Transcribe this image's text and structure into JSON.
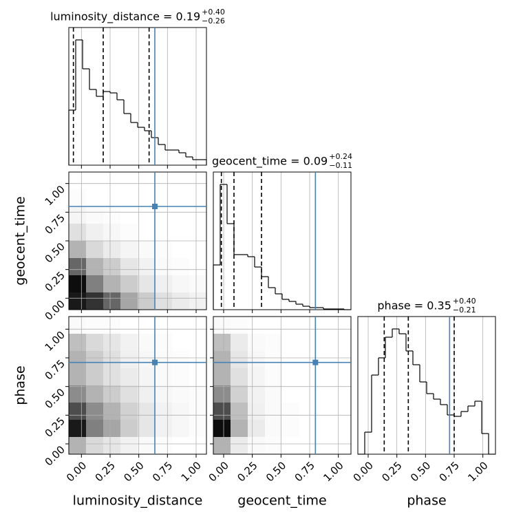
{
  "chart_data": [
    {
      "type": "histogram",
      "title": "luminosity_distance = 0.19",
      "title_sup": "+0.40",
      "title_sub": "−0.26",
      "bins": [
        -0.11,
        -0.05,
        0.01,
        0.07,
        0.13,
        0.19,
        0.25,
        0.31,
        0.37,
        0.43,
        0.49,
        0.55,
        0.61,
        0.67,
        0.73,
        0.79,
        0.85,
        0.91,
        0.97,
        1.03,
        1.09
      ],
      "counts": [
        80,
        182,
        140,
        110,
        100,
        107,
        105,
        95,
        75,
        62,
        55,
        50,
        40,
        30,
        22,
        22,
        18,
        12,
        8,
        8
      ],
      "quantiles": [
        -0.07,
        0.19,
        0.59
      ],
      "truth": 0.64,
      "truth_color": "#4682b4",
      "color": "#000000",
      "xlim": [
        -0.11,
        1.09
      ],
      "ylim": [
        0,
        200
      ],
      "xticks": [
        0,
        0.25,
        0.5,
        0.75,
        1
      ],
      "grid": true
    },
    {
      "type": "hist2d",
      "xlim": [
        -0.11,
        1.09
      ],
      "ylim": [
        -0.1,
        1.1
      ],
      "xticks": [
        0,
        0.25,
        0.5,
        0.75,
        1
      ],
      "yticks": [
        {
          "value": 0,
          "label": "0.00"
        },
        {
          "value": 0.25,
          "label": "0.25"
        },
        {
          "value": 0.5,
          "label": "0.50"
        },
        {
          "value": 0.75,
          "label": "0.75"
        },
        {
          "value": 1,
          "label": "1.00"
        }
      ],
      "ylabel": "geocent_time",
      "xbins": [
        -0.11,
        0.04,
        0.19,
        0.34,
        0.49,
        0.64,
        0.79,
        0.94,
        1.09
      ],
      "ybins": [
        -0.1,
        0.05,
        0.2,
        0.35,
        0.5,
        0.65,
        0.8,
        0.95,
        1.1
      ],
      "density": [
        [
          0.9,
          0.8,
          0.6,
          0.35,
          0.2,
          0.12,
          0.08,
          0.05
        ],
        [
          0.95,
          0.5,
          0.3,
          0.2,
          0.1,
          0.06,
          0.03,
          0.02
        ],
        [
          0.6,
          0.3,
          0.2,
          0.1,
          0.05,
          0.02,
          0.01,
          0
        ],
        [
          0.3,
          0.15,
          0.08,
          0.04,
          0.02,
          0.01,
          0,
          0
        ],
        [
          0.12,
          0.06,
          0.03,
          0.01,
          0,
          0,
          0,
          0
        ],
        [
          0.04,
          0.02,
          0.01,
          0,
          0,
          0,
          0,
          0
        ],
        [
          0.01,
          0,
          0,
          0,
          0,
          0,
          0,
          0
        ],
        [
          0,
          0,
          0,
          0,
          0,
          0,
          0,
          0
        ]
      ],
      "truth_x": 0.64,
      "truth_y": 0.8,
      "truth_color": "#4682b4",
      "grid": true
    },
    {
      "type": "histogram",
      "title": "geocent_time = 0.09",
      "title_sup": "+0.24",
      "title_sub": "−0.11",
      "bins": [
        -0.09,
        -0.03,
        0.03,
        0.09,
        0.15,
        0.21,
        0.27,
        0.33,
        0.39,
        0.45,
        0.51,
        0.57,
        0.63,
        0.69,
        0.75,
        0.81,
        0.87,
        0.93,
        0.99,
        1.05,
        1.11
      ],
      "counts": [
        65,
        182,
        125,
        80,
        80,
        77,
        62,
        48,
        32,
        23,
        15,
        12,
        8,
        5,
        3,
        3,
        1,
        1,
        1,
        0
      ],
      "quantiles": [
        -0.02,
        0.09,
        0.33
      ],
      "truth": 0.8,
      "truth_color": "#4682b4",
      "color": "#000000",
      "xlim": [
        -0.09,
        1.11
      ],
      "ylim": [
        0,
        200
      ],
      "xticks": [
        0,
        0.25,
        0.5,
        0.75,
        1
      ],
      "grid": true
    },
    {
      "type": "hist2d",
      "xlim": [
        -0.11,
        1.09
      ],
      "ylim": [
        -0.09,
        1.11
      ],
      "xticks": [
        {
          "value": 0,
          "label": "0.00"
        },
        {
          "value": 0.25,
          "label": "0.25"
        },
        {
          "value": 0.5,
          "label": "0.50"
        },
        {
          "value": 0.75,
          "label": "0.75"
        },
        {
          "value": 1,
          "label": "1.00"
        }
      ],
      "yticks": [
        {
          "value": 0,
          "label": "0.00"
        },
        {
          "value": 0.25,
          "label": "0.25"
        },
        {
          "value": 0.5,
          "label": "0.50"
        },
        {
          "value": 0.75,
          "label": "0.75"
        },
        {
          "value": 1,
          "label": "1.00"
        }
      ],
      "xlabel": "luminosity_distance",
      "ylabel": "phase",
      "xbins": [
        -0.11,
        0.04,
        0.19,
        0.34,
        0.49,
        0.64,
        0.79,
        0.94,
        1.09
      ],
      "ybins": [
        -0.09,
        0.06,
        0.21,
        0.36,
        0.51,
        0.66,
        0.81,
        0.96,
        1.11
      ],
      "density": [
        [
          0.3,
          0.15,
          0.1,
          0.05,
          0.02,
          0.01,
          0,
          0
        ],
        [
          0.9,
          0.5,
          0.35,
          0.2,
          0.1,
          0.05,
          0.03,
          0.01
        ],
        [
          0.7,
          0.45,
          0.3,
          0.18,
          0.1,
          0.05,
          0.03,
          0.01
        ],
        [
          0.45,
          0.3,
          0.2,
          0.12,
          0.06,
          0.03,
          0.02,
          0.01
        ],
        [
          0.3,
          0.2,
          0.12,
          0.08,
          0.04,
          0.02,
          0.01,
          0
        ],
        [
          0.3,
          0.2,
          0.12,
          0.06,
          0.03,
          0.02,
          0.01,
          0
        ],
        [
          0.25,
          0.15,
          0.1,
          0.05,
          0.02,
          0.01,
          0,
          0
        ],
        [
          0.02,
          0.01,
          0.01,
          0,
          0,
          0,
          0,
          0
        ]
      ],
      "truth_x": 0.64,
      "truth_y": 0.71,
      "truth_color": "#4682b4",
      "grid": true
    },
    {
      "type": "hist2d",
      "xlim": [
        -0.09,
        1.11
      ],
      "ylim": [
        -0.09,
        1.11
      ],
      "xticks": [
        {
          "value": 0,
          "label": "0.00"
        },
        {
          "value": 0.25,
          "label": "0.25"
        },
        {
          "value": 0.5,
          "label": "0.50"
        },
        {
          "value": 0.75,
          "label": "0.75"
        },
        {
          "value": 1,
          "label": "1.00"
        }
      ],
      "yticks": [
        0,
        0.25,
        0.5,
        0.75,
        1
      ],
      "xlabel": "geocent_time",
      "xbins": [
        -0.09,
        0.06,
        0.21,
        0.36,
        0.51,
        0.66,
        0.81,
        0.96,
        1.11
      ],
      "ybins": [
        -0.09,
        0.06,
        0.21,
        0.36,
        0.51,
        0.66,
        0.81,
        0.96,
        1.11
      ],
      "density": [
        [
          0.3,
          0.08,
          0.02,
          0.01,
          0,
          0,
          0,
          0
        ],
        [
          0.95,
          0.3,
          0.08,
          0.02,
          0.01,
          0,
          0,
          0
        ],
        [
          0.7,
          0.25,
          0.06,
          0.02,
          0.01,
          0,
          0,
          0
        ],
        [
          0.45,
          0.18,
          0.05,
          0.02,
          0,
          0,
          0,
          0
        ],
        [
          0.3,
          0.12,
          0.04,
          0.01,
          0,
          0,
          0,
          0
        ],
        [
          0.3,
          0.1,
          0.03,
          0.01,
          0,
          0,
          0,
          0
        ],
        [
          0.25,
          0.08,
          0.02,
          0.01,
          0,
          0,
          0,
          0
        ],
        [
          0.02,
          0.01,
          0,
          0,
          0,
          0,
          0,
          0
        ]
      ],
      "truth_x": 0.8,
      "truth_y": 0.71,
      "truth_color": "#4682b4",
      "grid": true
    },
    {
      "type": "histogram",
      "title": "phase = 0.35",
      "title_sup": "+0.40",
      "title_sub": "−0.21",
      "bins": [
        -0.09,
        -0.03,
        0.03,
        0.09,
        0.15,
        0.21,
        0.27,
        0.33,
        0.39,
        0.45,
        0.51,
        0.57,
        0.63,
        0.69,
        0.75,
        0.81,
        0.87,
        0.93,
        0.99,
        1.05,
        1.11
      ],
      "counts": [
        0,
        32,
        115,
        140,
        170,
        182,
        175,
        150,
        130,
        105,
        88,
        80,
        72,
        57,
        55,
        62,
        70,
        77,
        30,
        0
      ],
      "quantiles": [
        0.14,
        0.35,
        0.75
      ],
      "truth": 0.71,
      "truth_color": "#4682b4",
      "color": "#000000",
      "xlim": [
        -0.09,
        1.11
      ],
      "ylim": [
        0,
        200
      ],
      "xticks": [
        {
          "value": 0,
          "label": "0.00"
        },
        {
          "value": 0.25,
          "label": "0.25"
        },
        {
          "value": 0.5,
          "label": "0.50"
        },
        {
          "value": 0.75,
          "label": "0.75"
        },
        {
          "value": 1,
          "label": "1.00"
        }
      ],
      "xlabel": "phase",
      "grid": true
    }
  ]
}
